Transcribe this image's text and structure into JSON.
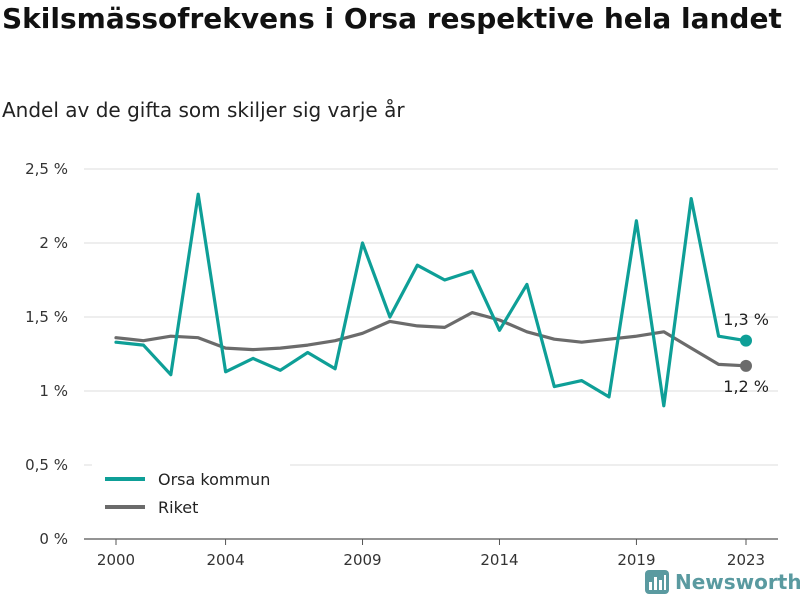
{
  "title": "Skilsmässofrekvens i Orsa respektive hela landet",
  "subtitle": "Andel av de gifta som skiljer sig varje år",
  "brand": "Newsworthy",
  "colors": {
    "orsa": "#0e9f97",
    "riket": "#6b6b6b",
    "grid": "#dddddd",
    "brand": "#5a9aa0"
  },
  "icons": {
    "brand_logo": "bar-chart-icon"
  },
  "chart_data": {
    "type": "line",
    "ylim": [
      0,
      2.5
    ],
    "y_ticks": [
      0,
      0.5,
      1,
      1.5,
      2,
      2.5
    ],
    "y_tick_labels": [
      "0 %",
      "0,5 %",
      "1 %",
      "1,5 %",
      "2 %",
      "2,5 %"
    ],
    "x_ticks": [
      2000,
      2004,
      2009,
      2014,
      2019,
      2023
    ],
    "x_tick_labels": [
      "2000",
      "2004",
      "2009",
      "2014",
      "2019",
      "2023"
    ],
    "grid": true,
    "legend_placement": "bottom-left",
    "x": [
      2000,
      2001,
      2002,
      2003,
      2004,
      2005,
      2006,
      2007,
      2008,
      2009,
      2010,
      2011,
      2012,
      2013,
      2014,
      2015,
      2016,
      2017,
      2018,
      2019,
      2020,
      2021,
      2022,
      2023
    ],
    "series": [
      {
        "name": "Orsa kommun",
        "color": "#0e9f97",
        "values": [
          1.33,
          1.31,
          1.11,
          2.33,
          1.13,
          1.22,
          1.14,
          1.26,
          1.15,
          2.0,
          1.5,
          1.85,
          1.75,
          1.81,
          1.41,
          1.72,
          1.03,
          1.07,
          0.96,
          2.15,
          0.9,
          2.3,
          1.37,
          1.34
        ],
        "end_label": "1,3 %"
      },
      {
        "name": "Riket",
        "color": "#6b6b6b",
        "values": [
          1.36,
          1.34,
          1.37,
          1.36,
          1.29,
          1.28,
          1.29,
          1.31,
          1.34,
          1.39,
          1.47,
          1.44,
          1.43,
          1.53,
          1.48,
          1.4,
          1.35,
          1.33,
          1.35,
          1.37,
          1.4,
          1.29,
          1.18,
          1.17
        ],
        "end_label": "1,2 %"
      }
    ]
  }
}
